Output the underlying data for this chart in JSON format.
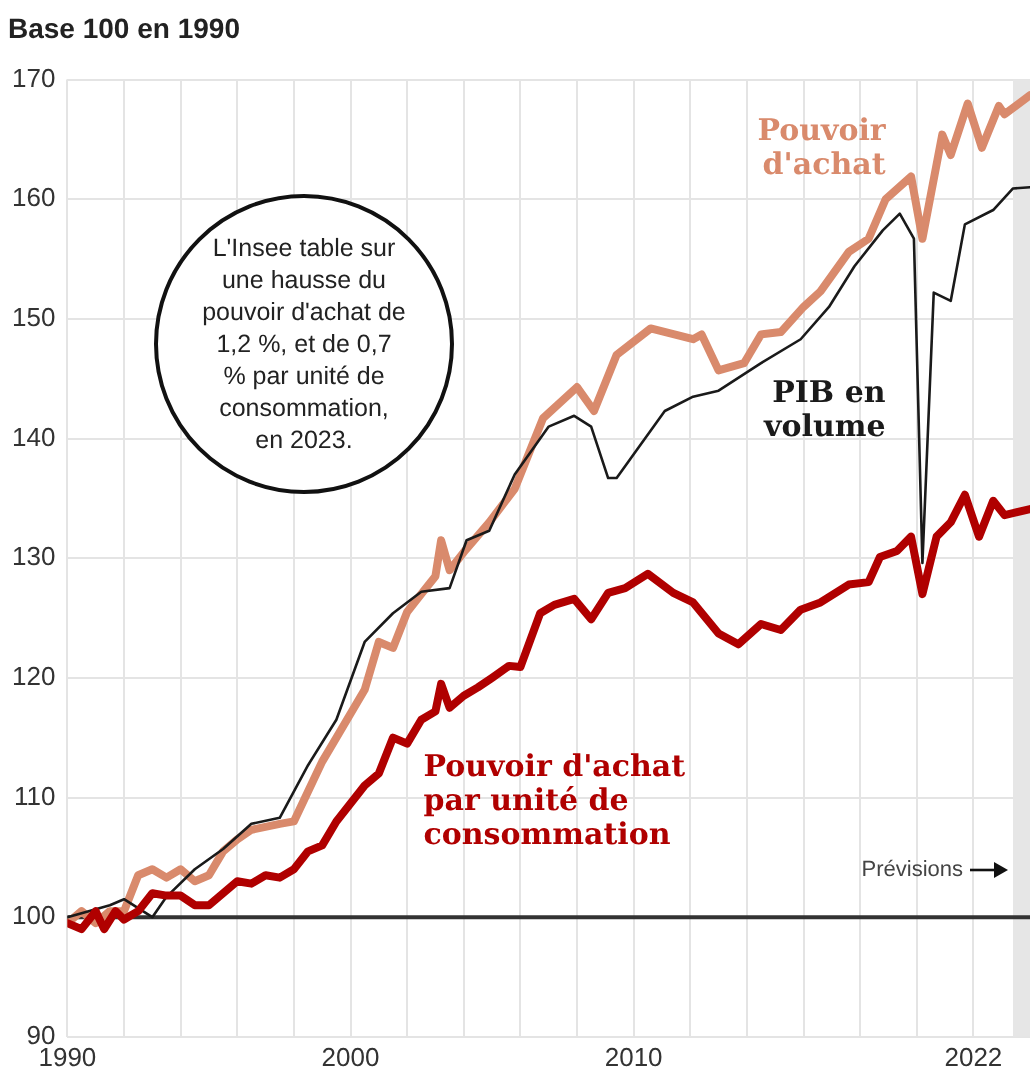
{
  "chart_data": {
    "type": "line",
    "title": "Base 100 en 1990",
    "annotations": [
      "L'Insee table sur une hausse du pouvoir d'achat de 1,2 %, et de 0,7 % par unité de consommation, en 2023."
    ],
    "series": [
      {
        "name": "Pouvoir d'achat",
        "color": "#d98a6c",
        "x": [
          1990,
          1990.5,
          1991,
          1991.5,
          1992,
          1992.5,
          1993,
          1993.5,
          1994,
          1994.5,
          1995,
          1995.5,
          1996,
          1996.5,
          1997.5,
          1998,
          1998.5,
          1999,
          1999.5,
          2000,
          2000.5,
          2001,
          2001.5,
          2002,
          2002.5,
          2003,
          2003.2,
          2003.5,
          2004,
          2004.9,
          2005.8,
          2006.8,
          2008,
          2008.6,
          2009.4,
          2010.6,
          2012.1,
          2012.4,
          2013,
          2013.9,
          2014.5,
          2015.2,
          2016,
          2016.6,
          2017.6,
          2018.3,
          2018.9,
          2019.8,
          2020.2,
          2020.9,
          2021.2,
          2021.8,
          2022.3,
          2022.9,
          2023.1,
          2024
        ],
        "values": [
          99.5,
          100.5,
          99.5,
          100.5,
          100.5,
          103.5,
          104,
          103.3,
          104,
          103,
          103.5,
          105.5,
          106.5,
          107.3,
          107.8,
          108,
          110.5,
          113,
          115,
          117,
          119,
          123,
          122.5,
          125.5,
          127,
          128.5,
          131.5,
          129,
          130.5,
          133,
          135.8,
          141.7,
          144.3,
          142.3,
          147,
          149.2,
          148.3,
          148.7,
          145.7,
          146.3,
          148.7,
          148.9,
          151,
          152.3,
          155.6,
          156.7,
          160,
          161.9,
          156.7,
          165.4,
          163.7,
          168,
          164.3,
          167.8,
          167.1,
          168.7
        ]
      },
      {
        "name": "PIB en volume",
        "color": "#1a1a1a",
        "x": [
          1990,
          1991.5,
          1992,
          1993,
          1993.5,
          1994.5,
          1995.5,
          1996.5,
          1997.5,
          1998.5,
          1999.5,
          2000.5,
          2001.5,
          2002.5,
          2003.5,
          2004.1,
          2004.9,
          2005.8,
          2007,
          2007.9,
          2008.5,
          2009.1,
          2009.4,
          2011.1,
          2012.1,
          2013,
          2014.5,
          2015.9,
          2016.9,
          2017.8,
          2018.8,
          2019.4,
          2019.9,
          2020.2,
          2020.6,
          2021.2,
          2021.7,
          2022.7,
          2023.4,
          2024
        ],
        "values": [
          100,
          101,
          101.5,
          100,
          101.7,
          104,
          105.7,
          107.8,
          108.3,
          112.7,
          116.5,
          123,
          125.4,
          127.2,
          127.5,
          131.5,
          132.3,
          137,
          141,
          141.9,
          141,
          136.7,
          136.7,
          142.3,
          143.5,
          144,
          146.3,
          148.3,
          151,
          154.4,
          157.4,
          158.8,
          156.7,
          129.6,
          152.2,
          151.5,
          157.9,
          159.1,
          160.9,
          161
        ]
      },
      {
        "name": "Pouvoir d'achat par unité de consommation",
        "color": "#b00000",
        "x": [
          1990,
          1990.5,
          1991,
          1991.3,
          1991.7,
          1992,
          1992.5,
          1993,
          1993.5,
          1994,
          1994.5,
          1995,
          1995.5,
          1996,
          1996.5,
          1997,
          1997.5,
          1998,
          1998.5,
          1999,
          1999.5,
          2000,
          2000.5,
          2001,
          2001.5,
          2002,
          2002.5,
          2003,
          2003.2,
          2003.5,
          2004,
          2004.5,
          2005,
          2005.6,
          2006,
          2006.7,
          2007.2,
          2007.9,
          2008.5,
          2009.1,
          2009.7,
          2010.5,
          2011.4,
          2012.1,
          2013,
          2013.7,
          2014.5,
          2015.2,
          2015.9,
          2016.6,
          2017.6,
          2018.3,
          2018.7,
          2019.3,
          2019.8,
          2020.2,
          2020.7,
          2021.2,
          2021.7,
          2022.2,
          2022.7,
          2023.1,
          2024
        ],
        "values": [
          99.5,
          99,
          100.5,
          99,
          100.5,
          99.8,
          100.5,
          102,
          101.8,
          101.8,
          101,
          101,
          102,
          103,
          102.8,
          103.5,
          103.3,
          104,
          105.5,
          106,
          108,
          109.5,
          111,
          112,
          115,
          114.5,
          116.5,
          117.2,
          119.5,
          117.5,
          118.5,
          119.2,
          120,
          121,
          120.9,
          125.4,
          126.1,
          126.6,
          124.9,
          127.1,
          127.5,
          128.7,
          127.1,
          126.3,
          123.7,
          122.8,
          124.5,
          124,
          125.7,
          126.3,
          127.8,
          128,
          130.1,
          130.6,
          131.8,
          127,
          131.8,
          133,
          135.3,
          131.8,
          134.8,
          133.6,
          134.1
        ]
      }
    ],
    "xlim": [
      1990,
      2024
    ],
    "xticks": [
      1990,
      {
        "value": 1992,
        "label": null
      },
      {
        "value": 1994,
        "label": null
      },
      {
        "value": 1996,
        "label": null
      },
      {
        "value": 1998,
        "label": null
      },
      2000,
      {
        "value": 2002,
        "label": null
      },
      {
        "value": 2004,
        "label": null
      },
      {
        "value": 2006,
        "label": null
      },
      {
        "value": 2008,
        "label": null
      },
      2010,
      {
        "value": 2012,
        "label": null
      },
      {
        "value": 2014,
        "label": null
      },
      {
        "value": 2016,
        "label": null
      },
      {
        "value": 2018,
        "label": null
      },
      {
        "value": 2020,
        "label": null
      },
      2022
    ],
    "ylim": [
      90,
      170
    ],
    "yticks": [
      90,
      100,
      110,
      120,
      130,
      140,
      150,
      160,
      170
    ],
    "ref_lines": [
      {
        "axis": "y",
        "value": 100,
        "color": "#333333"
      }
    ],
    "bands": [
      {
        "axis": "x",
        "from": 2023.4,
        "to": 2024,
        "label": "Prévisions",
        "color": "#e6e6e6"
      }
    ],
    "grid": true,
    "legend": false,
    "marker": "none",
    "line_style": "solid"
  }
}
